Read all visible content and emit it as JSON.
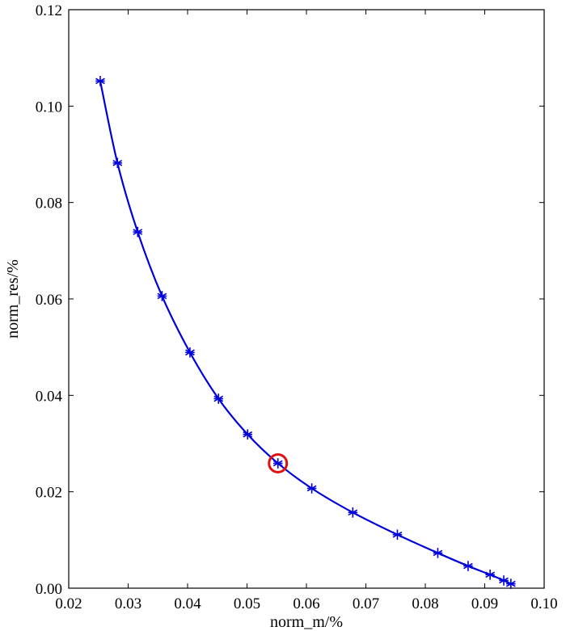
{
  "chart_data": {
    "type": "line",
    "xlabel": "norm_m/%",
    "ylabel": "norm_res/%",
    "xlim": [
      0.02,
      0.1
    ],
    "ylim": [
      0.0,
      0.12
    ],
    "xticks": [
      "0.02",
      "0.03",
      "0.04",
      "0.05",
      "0.06",
      "0.07",
      "0.08",
      "0.09",
      "0.10"
    ],
    "yticks": [
      "0.00",
      "0.02",
      "0.04",
      "0.06",
      "0.08",
      "0.10",
      "0.12"
    ],
    "grid": false,
    "legend": "none",
    "series": [
      {
        "marker": "asterisk",
        "color": "#0000dd",
        "x": [
          0.0253,
          0.0282,
          0.0316,
          0.0357,
          0.0404,
          0.0452,
          0.0501,
          0.0552,
          0.0609,
          0.0678,
          0.0753,
          0.0821,
          0.0872,
          0.0909,
          0.0932,
          0.0944
        ],
        "y": [
          0.1052,
          0.0882,
          0.0739,
          0.0606,
          0.0489,
          0.0393,
          0.0319,
          0.0259,
          0.0207,
          0.0157,
          0.0111,
          0.0073,
          0.0046,
          0.0028,
          0.0016,
          0.0009
        ]
      }
    ],
    "highlight": {
      "shape": "circle",
      "x": 0.0552,
      "y": 0.0259,
      "color": "#e01010"
    }
  }
}
